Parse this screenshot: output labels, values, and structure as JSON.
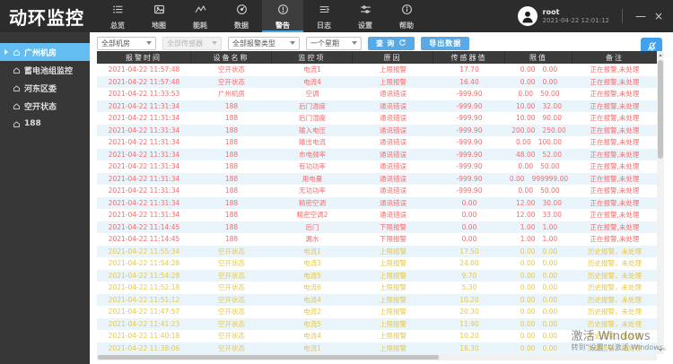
{
  "app": {
    "title": "动环监控"
  },
  "topbar": {
    "nav": [
      {
        "label": "总览",
        "icon": "overview-list-icon",
        "active": false
      },
      {
        "label": "地图",
        "icon": "map-icon",
        "active": false
      },
      {
        "label": "能耗",
        "icon": "energy-wave-icon",
        "active": false
      },
      {
        "label": "数据",
        "icon": "data-gauge-icon",
        "active": false
      },
      {
        "label": "警告",
        "icon": "alert-icon",
        "active": true
      },
      {
        "label": "日志",
        "icon": "log-icon",
        "active": false
      },
      {
        "label": "设置",
        "icon": "settings-icon",
        "active": false
      },
      {
        "label": "帮助",
        "icon": "help-icon",
        "active": false
      }
    ],
    "user": {
      "name": "root",
      "datetime": "2021-04-22 12:01:12",
      "icon": "user-avatar-icon"
    },
    "window_controls": {
      "minimize": "—",
      "close": "×"
    }
  },
  "sidebar": {
    "items": [
      {
        "label": "广州机房",
        "selected": true
      },
      {
        "label": "蓄电池组监控",
        "selected": false
      },
      {
        "label": "河东区委",
        "selected": false
      },
      {
        "label": "空开状态",
        "selected": false
      },
      {
        "label": "188",
        "selected": false
      }
    ]
  },
  "filters": {
    "room": "全部机房",
    "sensor": "全部传感器",
    "alarm_type": "全部报警类型",
    "period": "一个星期",
    "query_label": "查 询",
    "export_label": "导出数据"
  },
  "colors": {
    "accent_blue": "#58a9e6",
    "selected_sidebar": "#64bdf0",
    "active_alarm_red": "#f56c6c",
    "history_alarm_yellow": "#e4c84e",
    "row_alt_blue": "#e9f4fb",
    "topbar_dark": "#2c2c2c"
  },
  "alarm_table": {
    "headers": [
      "报警时间",
      "设备名称",
      "监控项",
      "原因",
      "传感器值",
      "限值",
      "备注"
    ],
    "rows": [
      {
        "time": "2021-04-22 11:57:48",
        "device": "空开状态",
        "item": "电流1",
        "reason": "上限报警",
        "value": "17.70",
        "limit_low": "0.00",
        "limit_high": "0.00",
        "remark": "正在报警,未处理",
        "status": "active"
      },
      {
        "time": "2021-04-22 11:57:48",
        "device": "空开状态",
        "item": "电流4",
        "reason": "上限报警",
        "value": "16.40",
        "limit_low": "0.00",
        "limit_high": "0.00",
        "remark": "正在报警,未处理",
        "status": "active"
      },
      {
        "time": "2021-04-22 11:33:53",
        "device": "广州机房",
        "item": "空调",
        "reason": "通讯错误",
        "value": "-999.90",
        "limit_low": "0.00",
        "limit_high": "50.00",
        "remark": "正在报警,未处理",
        "status": "active"
      },
      {
        "time": "2021-04-22 11:31:34",
        "device": "188",
        "item": "后门温度",
        "reason": "通讯错误",
        "value": "-999.90",
        "limit_low": "10.00",
        "limit_high": "32.00",
        "remark": "正在报警,未处理",
        "status": "active"
      },
      {
        "time": "2021-04-22 11:31:34",
        "device": "188",
        "item": "后门湿度",
        "reason": "通讯错误",
        "value": "-999.90",
        "limit_low": "10.00",
        "limit_high": "90.00",
        "remark": "正在报警,未处理",
        "status": "active"
      },
      {
        "time": "2021-04-22 11:31:34",
        "device": "188",
        "item": "输入电压",
        "reason": "通讯错误",
        "value": "-999.90",
        "limit_low": "200.00",
        "limit_high": "250.00",
        "remark": "正在报警,未处理",
        "status": "active"
      },
      {
        "time": "2021-04-22 11:31:34",
        "device": "188",
        "item": "输出电流",
        "reason": "通讯错误",
        "value": "-999.90",
        "limit_low": "0.00",
        "limit_high": "100.00",
        "remark": "正在报警,未处理",
        "status": "active"
      },
      {
        "time": "2021-04-22 11:31:34",
        "device": "188",
        "item": "市电频率",
        "reason": "通讯错误",
        "value": "-999.90",
        "limit_low": "48.00",
        "limit_high": "52.00",
        "remark": "正在报警,未处理",
        "status": "active"
      },
      {
        "time": "2021-04-22 11:31:34",
        "device": "188",
        "item": "有功功率",
        "reason": "通讯错误",
        "value": "-999.90",
        "limit_low": "0.00",
        "limit_high": "50.00",
        "remark": "正在报警,未处理",
        "status": "active"
      },
      {
        "time": "2021-04-22 11:31:34",
        "device": "188",
        "item": "用电量",
        "reason": "通讯错误",
        "value": "-999.90",
        "limit_low": "0.00",
        "limit_high": "999999.00",
        "remark": "正在报警,未处理",
        "status": "active"
      },
      {
        "time": "2021-04-22 11:31:34",
        "device": "188",
        "item": "无功功率",
        "reason": "通讯错误",
        "value": "-999.90",
        "limit_low": "0.00",
        "limit_high": "50.00",
        "remark": "正在报警,未处理",
        "status": "active"
      },
      {
        "time": "2021-04-22 11:31:34",
        "device": "188",
        "item": "精密空调",
        "reason": "通讯错误",
        "value": "0.00",
        "limit_low": "12.00",
        "limit_high": "30.00",
        "remark": "正在报警,未处理",
        "status": "active"
      },
      {
        "time": "2021-04-22 11:31:34",
        "device": "188",
        "item": "精密空调2",
        "reason": "通讯错误",
        "value": "0.00",
        "limit_low": "12.00",
        "limit_high": "33.00",
        "remark": "正在报警,未处理",
        "status": "active"
      },
      {
        "time": "2021-04-22 11:14:45",
        "device": "188",
        "item": "后门",
        "reason": "下限报警",
        "value": "0.00",
        "limit_low": "1.00",
        "limit_high": "1.00",
        "remark": "正在报警,未处理",
        "status": "active"
      },
      {
        "time": "2021-04-22 11:14:45",
        "device": "188",
        "item": "漏水",
        "reason": "下限报警",
        "value": "0.00",
        "limit_low": "1.00",
        "limit_high": "1.00",
        "remark": "正在报警,未处理",
        "status": "active"
      },
      {
        "time": "2021-04-22 11:55:34",
        "device": "空开状态",
        "item": "电流1",
        "reason": "上限报警",
        "value": "17.50",
        "limit_low": "0.00",
        "limit_high": "0.00",
        "remark": "历史报警，未处理",
        "status": "history"
      },
      {
        "time": "2021-04-22 11:54:28",
        "device": "空开状态",
        "item": "电流3",
        "reason": "上限报警",
        "value": "24.00",
        "limit_low": "0.00",
        "limit_high": "0.00",
        "remark": "历史报警，未处理",
        "status": "history"
      },
      {
        "time": "2021-04-22 11:54:28",
        "device": "空开状态",
        "item": "电流5",
        "reason": "上限报警",
        "value": "9.70",
        "limit_low": "0.00",
        "limit_high": "0.00",
        "remark": "历史报警，未处理",
        "status": "history"
      },
      {
        "time": "2021-04-22 11:52:18",
        "device": "空开状态",
        "item": "电流6",
        "reason": "上限报警",
        "value": "5.30",
        "limit_low": "0.00",
        "limit_high": "0.00",
        "remark": "历史报警，未处理",
        "status": "history"
      },
      {
        "time": "2021-04-22 11:51:12",
        "device": "空开状态",
        "item": "电流4",
        "reason": "上限报警",
        "value": "10.20",
        "limit_low": "0.00",
        "limit_high": "0.00",
        "remark": "历史报警，未处理",
        "status": "history"
      },
      {
        "time": "2021-04-22 11:47:57",
        "device": "空开状态",
        "item": "电流2",
        "reason": "上限报警",
        "value": "20.30",
        "limit_low": "0.00",
        "limit_high": "0.00",
        "remark": "历史报警，未处理",
        "status": "history"
      },
      {
        "time": "2021-04-22 11:41:23",
        "device": "空开状态",
        "item": "电流5",
        "reason": "上限报警",
        "value": "11.90",
        "limit_low": "0.00",
        "limit_high": "0.00",
        "remark": "历史报警，未处理",
        "status": "history"
      },
      {
        "time": "2021-04-22 11:40:18",
        "device": "空开状态",
        "item": "电流4",
        "reason": "上限报警",
        "value": "10.20",
        "limit_low": "0.00",
        "limit_high": "0.00",
        "remark": "历史报警，未处理",
        "status": "history"
      },
      {
        "time": "2021-04-22 11:38:06",
        "device": "空开状态",
        "item": "电流1",
        "reason": "上限报警",
        "value": "18.30",
        "limit_low": "0.00",
        "limit_high": "0.00",
        "remark": "历史报警，未处理",
        "status": "history"
      }
    ]
  },
  "watermark": {
    "line1": "激活 Windows",
    "line2": "转到“设置”以激活 Windows。"
  }
}
